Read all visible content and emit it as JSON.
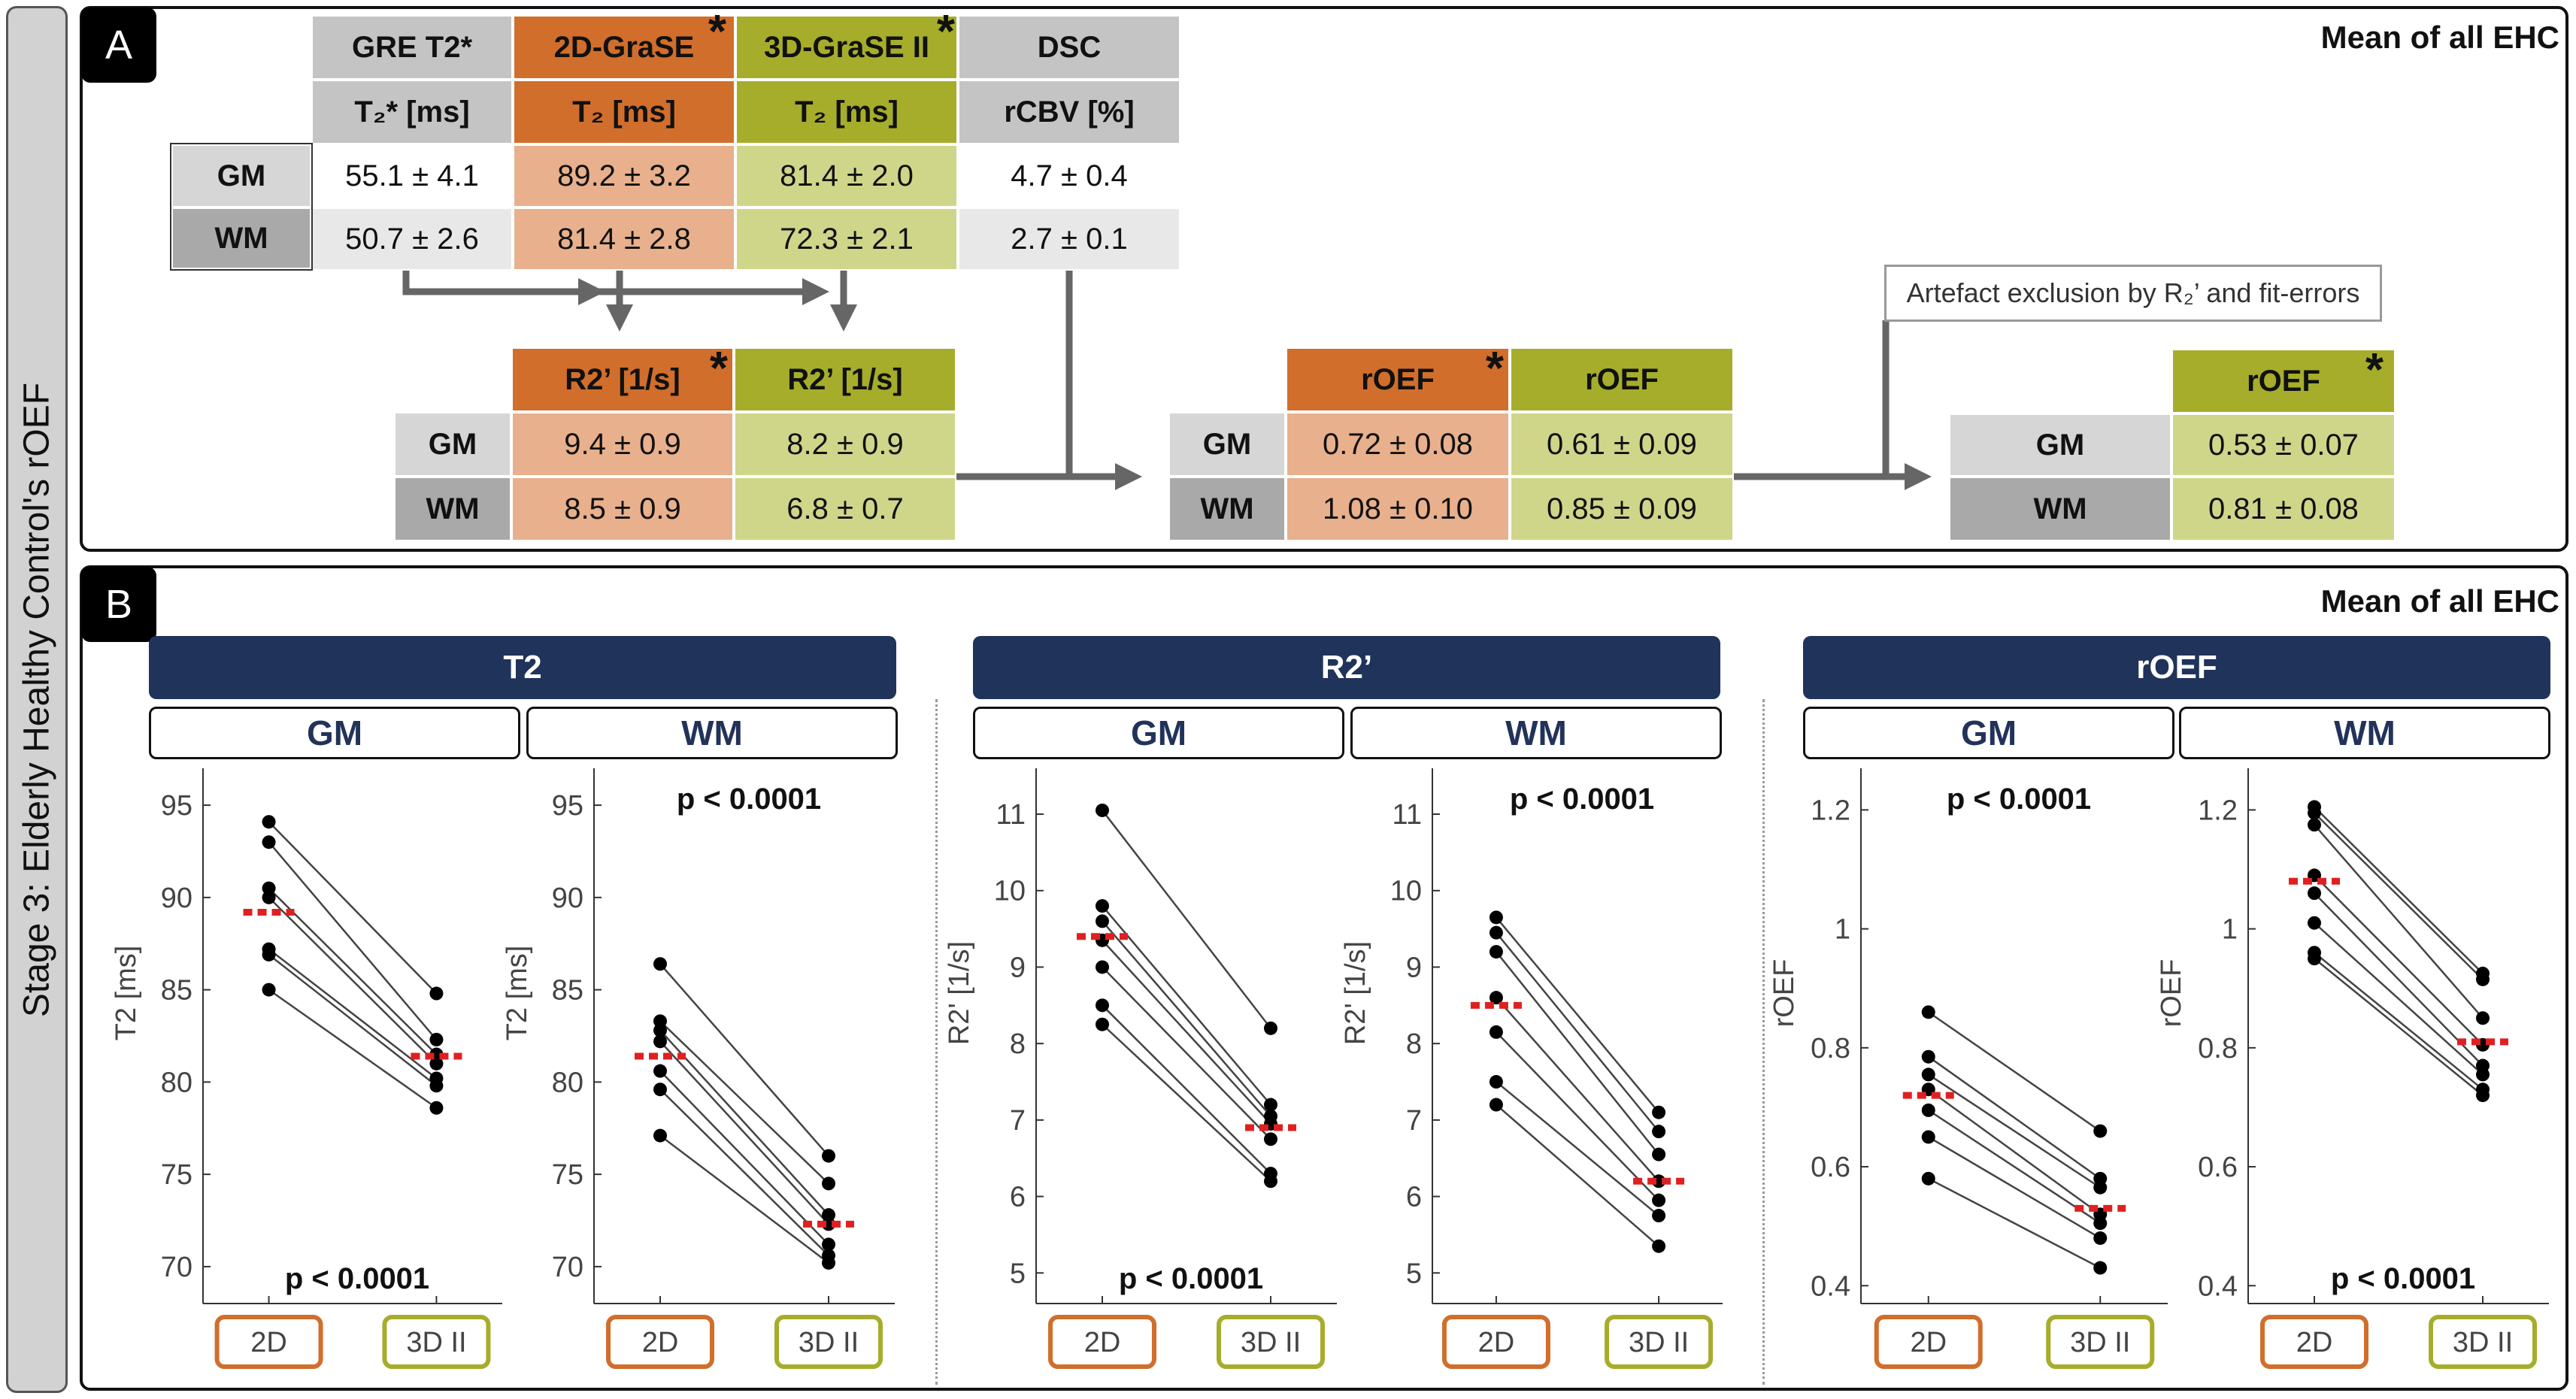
{
  "side_label": "Stage 3: Elderly Healthy Control's rOEF",
  "panelA": {
    "label": "A",
    "title": "Mean of all EHC",
    "table1": {
      "methods": [
        "GRE T2*",
        "2D-GraSE",
        "3D-GraSE II",
        "DSC"
      ],
      "units": [
        "T₂* [ms]",
        "T₂ [ms]",
        "T₂ [ms]",
        "rCBV [%]"
      ],
      "rows": [
        {
          "label": "GM",
          "values": [
            "55.1 ± 4.1",
            "89.2 ± 3.2",
            "81.4 ± 2.0",
            "4.7 ± 0.4"
          ]
        },
        {
          "label": "WM",
          "values": [
            "50.7 ± 2.6",
            "81.4 ± 2.8",
            "72.3 ± 2.1",
            "2.7 ± 0.1"
          ]
        }
      ]
    },
    "table2": {
      "headers": [
        "R2’ [1/s]",
        "R2’ [1/s]"
      ],
      "rows": [
        {
          "label": "GM",
          "values": [
            "9.4 ± 0.9",
            "8.2 ± 0.9"
          ]
        },
        {
          "label": "WM",
          "values": [
            "8.5 ± 0.9",
            "6.8 ± 0.7"
          ]
        }
      ]
    },
    "table3": {
      "headers": [
        "rOEF",
        "rOEF"
      ],
      "rows": [
        {
          "label": "GM",
          "values": [
            "0.72 ± 0.08",
            "0.61 ± 0.09"
          ]
        },
        {
          "label": "WM",
          "values": [
            "1.08 ± 0.10",
            "0.85 ± 0.09"
          ]
        }
      ]
    },
    "note": "Artefact exclusion by R₂’ and fit-errors",
    "table4": {
      "header": "rOEF",
      "rows": [
        {
          "label": "GM",
          "value": "0.53 ± 0.07"
        },
        {
          "label": "WM",
          "value": "0.81 ± 0.08"
        }
      ]
    },
    "star": "*"
  },
  "panelB": {
    "label": "B",
    "title": "Mean of all EHC",
    "groups": [
      {
        "title": "T2",
        "sub": [
          "GM",
          "WM"
        ]
      },
      {
        "title": "R2’",
        "sub": [
          "GM",
          "WM"
        ]
      },
      {
        "title": "rOEF",
        "sub": [
          "GM",
          "WM"
        ]
      }
    ]
  },
  "colors": {
    "orange": "#d16e2c",
    "green": "#a6ad2a",
    "navy": "#20335a",
    "mean": "#e02020"
  },
  "chart_data": [
    {
      "type": "scatter",
      "title": "T2 GM",
      "ylabel": "T2 [ms]",
      "ylim": [
        68,
        97
      ],
      "yticks": [
        70,
        75,
        80,
        85,
        90,
        95
      ],
      "categories": [
        "2D",
        "3D II"
      ],
      "p_text": "p < 0.0001",
      "p_pos": "bottom",
      "pairs": [
        [
          94.1,
          84.8
        ],
        [
          93.0,
          82.3
        ],
        [
          90.5,
          81.5
        ],
        [
          90.0,
          81.0
        ],
        [
          87.2,
          80.2
        ],
        [
          86.9,
          79.8
        ],
        [
          85.0,
          78.6
        ]
      ],
      "means": [
        89.2,
        81.4
      ]
    },
    {
      "type": "scatter",
      "title": "T2 WM",
      "ylabel": "T2 [ms]",
      "ylim": [
        68,
        97
      ],
      "yticks": [
        70,
        75,
        80,
        85,
        90,
        95
      ],
      "categories": [
        "2D",
        "3D II"
      ],
      "p_text": "p < 0.0001",
      "p_pos": "top",
      "pairs": [
        [
          86.4,
          76.0
        ],
        [
          83.3,
          74.5
        ],
        [
          82.8,
          72.8
        ],
        [
          82.2,
          72.3
        ],
        [
          80.6,
          71.2
        ],
        [
          79.6,
          70.6
        ],
        [
          77.1,
          70.2
        ]
      ],
      "means": [
        81.4,
        72.3
      ]
    },
    {
      "type": "scatter",
      "title": "R2' GM",
      "ylabel": "R2' [1/s]",
      "ylim": [
        4.6,
        11.6
      ],
      "yticks": [
        5,
        6,
        7,
        8,
        9,
        10,
        11
      ],
      "categories": [
        "2D",
        "3D II"
      ],
      "p_text": "p < 0.0001",
      "p_pos": "bottom",
      "pairs": [
        [
          11.05,
          8.2
        ],
        [
          9.8,
          7.2
        ],
        [
          9.6,
          7.05
        ],
        [
          9.35,
          6.95
        ],
        [
          9.0,
          6.75
        ],
        [
          8.5,
          6.3
        ],
        [
          8.25,
          6.2
        ]
      ],
      "means": [
        9.4,
        6.9
      ]
    },
    {
      "type": "scatter",
      "title": "R2' WM",
      "ylabel": "R2' [1/s]",
      "ylim": [
        4.6,
        11.6
      ],
      "yticks": [
        5,
        6,
        7,
        8,
        9,
        10,
        11
      ],
      "categories": [
        "2D",
        "3D II"
      ],
      "p_text": "p < 0.0001",
      "p_pos": "top",
      "pairs": [
        [
          9.65,
          7.1
        ],
        [
          9.45,
          6.85
        ],
        [
          9.2,
          6.55
        ],
        [
          8.6,
          6.2
        ],
        [
          8.15,
          5.95
        ],
        [
          7.5,
          5.75
        ],
        [
          7.2,
          5.35
        ]
      ],
      "means": [
        8.5,
        6.2
      ]
    },
    {
      "type": "scatter",
      "title": "rOEF GM",
      "ylabel": "rOEF",
      "ylim": [
        0.37,
        1.27
      ],
      "yticks": [
        0.4,
        0.6,
        0.8,
        1,
        1.2
      ],
      "categories": [
        "2D",
        "3D II"
      ],
      "p_text": "p < 0.0001",
      "p_pos": "top",
      "pairs": [
        [
          0.86,
          0.66
        ],
        [
          0.785,
          0.58
        ],
        [
          0.755,
          0.565
        ],
        [
          0.73,
          0.52
        ],
        [
          0.695,
          0.505
        ],
        [
          0.65,
          0.48
        ],
        [
          0.58,
          0.43
        ]
      ],
      "means": [
        0.72,
        0.53
      ]
    },
    {
      "type": "scatter",
      "title": "rOEF WM",
      "ylabel": "rOEF",
      "ylim": [
        0.37,
        1.27
      ],
      "yticks": [
        0.4,
        0.6,
        0.8,
        1,
        1.2
      ],
      "categories": [
        "2D",
        "3D II"
      ],
      "p_text": "p < 0.0001",
      "p_pos": "bottom",
      "pairs": [
        [
          1.205,
          0.925
        ],
        [
          1.195,
          0.915
        ],
        [
          1.175,
          0.85
        ],
        [
          1.09,
          0.805
        ],
        [
          1.06,
          0.77
        ],
        [
          1.01,
          0.755
        ],
        [
          0.96,
          0.73
        ],
        [
          0.95,
          0.72
        ]
      ],
      "means": [
        1.08,
        0.81
      ]
    }
  ]
}
